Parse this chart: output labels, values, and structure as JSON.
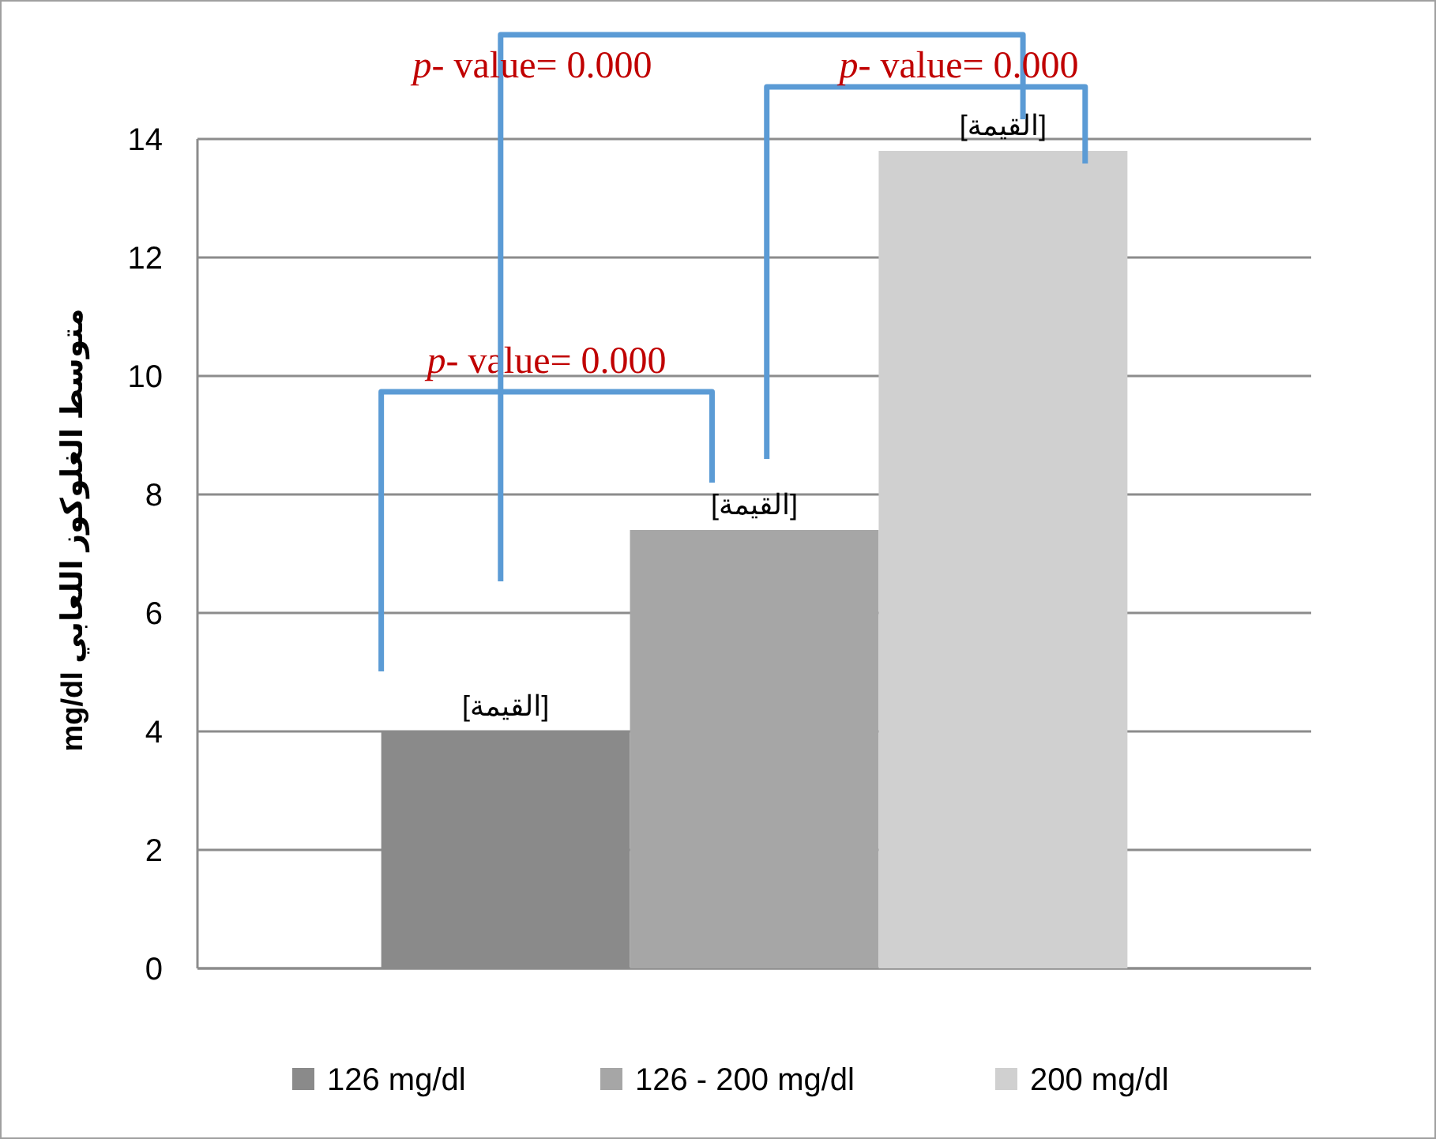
{
  "chart_data": {
    "type": "bar",
    "ylabel": "متوسط الغلوكوز اللعابي mg/dl",
    "categories": [
      null
    ],
    "series": [
      {
        "name": "126 mg/dl",
        "color": "#8a8a8a",
        "values": [
          4.0
        ],
        "value_labels": [
          "[القيمة]"
        ]
      },
      {
        "name": "126 - 200 mg/dl",
        "color": "#a6a6a6",
        "values": [
          7.4
        ],
        "value_labels": [
          "[القيمة]"
        ]
      },
      {
        "name": "200 mg/dl",
        "color": "#d0d0d0",
        "values": [
          13.8
        ],
        "value_labels": [
          "[القيمة]"
        ]
      }
    ],
    "ylim": [
      0,
      14
    ],
    "yticks": [
      0,
      2,
      4,
      6,
      8,
      10,
      12,
      14
    ],
    "grid": "y",
    "legend": "bottom",
    "annotations": [
      "*p*- value= 0.000",
      "*p*- value= 0.000",
      "*p*- value= 0.000"
    ]
  }
}
